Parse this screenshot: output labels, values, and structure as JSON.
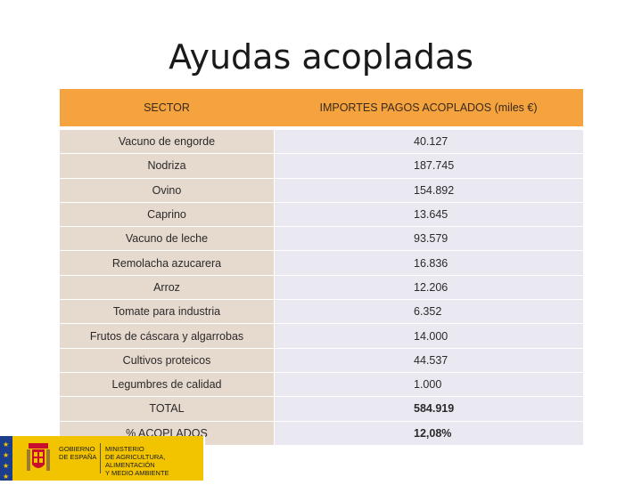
{
  "title": "Ayudas acopladas",
  "table": {
    "headers": [
      "SECTOR",
      "IMPORTES PAGOS ACOPLADOS (miles €)"
    ],
    "rows": [
      {
        "sector": "Vacuno de engorde",
        "importe": "40.127"
      },
      {
        "sector": "Nodriza",
        "importe": "187.745"
      },
      {
        "sector": "Ovino",
        "importe": "154.892"
      },
      {
        "sector": "Caprino",
        "importe": "13.645"
      },
      {
        "sector": "Vacuno de leche",
        "importe": "93.579"
      },
      {
        "sector": "Remolacha azucarera",
        "importe": "16.836"
      },
      {
        "sector": "Arroz",
        "importe": "12.206"
      },
      {
        "sector": "Tomate para industria",
        "importe": "6.352"
      },
      {
        "sector": "Frutos de cáscara y algarrobas",
        "importe": "14.000"
      },
      {
        "sector": "Cultivos proteicos",
        "importe": "44.537"
      },
      {
        "sector": "Legumbres de calidad",
        "importe": "1.000"
      }
    ],
    "total": {
      "label": "TOTAL",
      "value": "584.919"
    },
    "percent": {
      "label": "% ACOPLADOS",
      "value": "12,08%"
    }
  },
  "logo": {
    "gobierno_line1": "GOBIERNO",
    "gobierno_line2": "DE ESPAÑA",
    "ministerio_line1": "MINISTERIO",
    "ministerio_line2": "DE AGRICULTURA, ALIMENTACIÓN",
    "ministerio_line3": "Y MEDIO AMBIENTE"
  }
}
